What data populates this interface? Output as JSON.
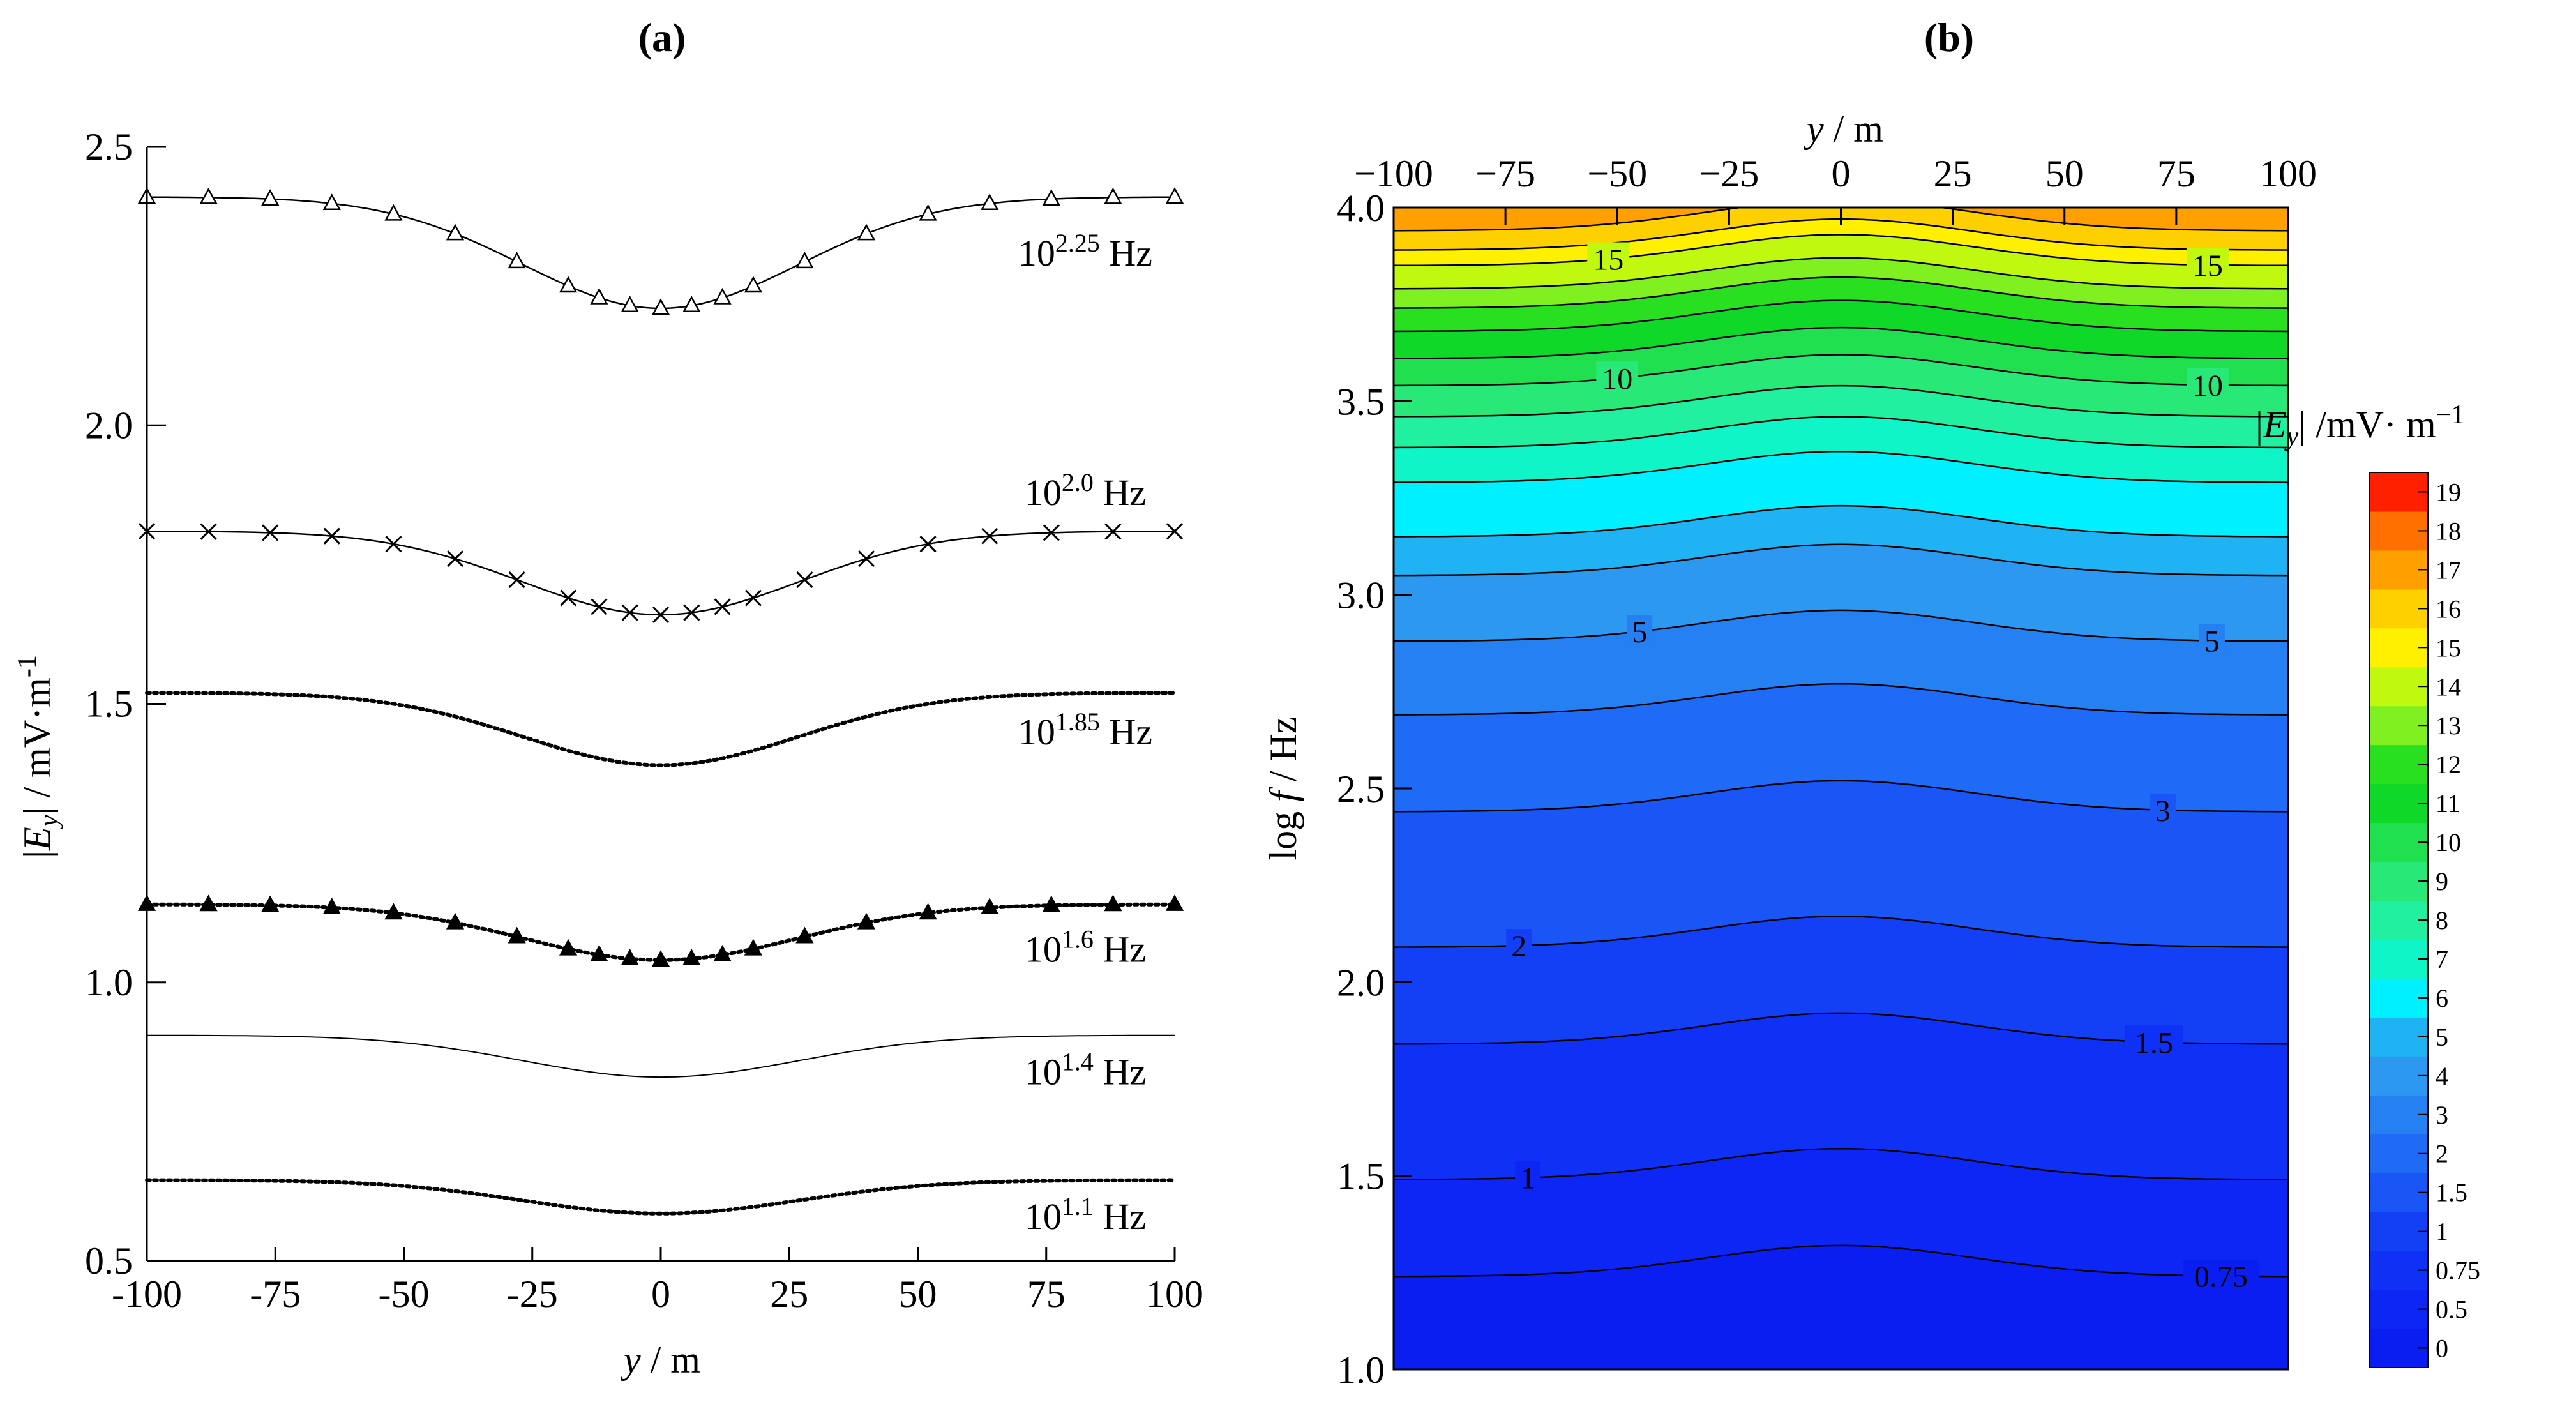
{
  "chart_data": [
    {
      "panel": "a",
      "panel_label": "(a)",
      "type": "line",
      "title": "",
      "xlabel": "y / m",
      "ylabel": "|Ey| / mV·m⁻¹",
      "xlim": [
        -100,
        100
      ],
      "ylim": [
        0.5,
        2.5
      ],
      "x_ticks": [
        -100,
        -75,
        -50,
        -25,
        0,
        25,
        50,
        75,
        100
      ],
      "x_tick_labels": [
        "-100",
        "-75",
        "-50",
        "-25",
        "0",
        "25",
        "50",
        "75",
        "100"
      ],
      "y_ticks": [
        0.5,
        1.0,
        1.5,
        2.0,
        2.5
      ],
      "y_tick_labels": [
        "0.5",
        "1.0",
        "1.5",
        "2.0",
        "2.5"
      ],
      "series": [
        {
          "name": "10^2.25 Hz",
          "exponent": "2.25",
          "unit": "Hz",
          "edge_value": 2.41,
          "center_value": 2.21,
          "line": "solid",
          "marker": "open-triangle"
        },
        {
          "name": "10^2.0 Hz",
          "exponent": "2.0",
          "unit": "Hz",
          "edge_value": 1.81,
          "center_value": 1.66,
          "line": "solid",
          "marker": "x"
        },
        {
          "name": "10^1.85 Hz",
          "exponent": "1.85",
          "unit": "Hz",
          "edge_value": 1.52,
          "center_value": 1.39,
          "line": "dotted",
          "marker": "none"
        },
        {
          "name": "10^1.6 Hz",
          "exponent": "1.6",
          "unit": "Hz",
          "edge_value": 1.14,
          "center_value": 1.04,
          "line": "dotted",
          "marker": "filled-triangle"
        },
        {
          "name": "10^1.4 Hz",
          "exponent": "1.4",
          "unit": "Hz",
          "edge_value": 0.905,
          "center_value": 0.83,
          "line": "solid-thin",
          "marker": "none"
        },
        {
          "name": "10^1.1 Hz",
          "exponent": "1.1",
          "unit": "Hz",
          "edge_value": 0.645,
          "center_value": 0.585,
          "line": "dotted",
          "marker": "none"
        }
      ],
      "marker_x": [
        -100,
        -88,
        -76,
        -64,
        -52,
        -40,
        -28,
        -18,
        -12,
        -6,
        0,
        6,
        12,
        18,
        28,
        40,
        52,
        64,
        76,
        88,
        100
      ]
    },
    {
      "panel": "b",
      "panel_label": "(b)",
      "type": "heatmap",
      "title": "",
      "xlabel": "y / m",
      "ylabel": "log f / Hz",
      "xlim": [
        -100,
        100
      ],
      "ylim": [
        1.0,
        4.0
      ],
      "x_ticks": [
        -100,
        -75,
        -50,
        -25,
        0,
        25,
        50,
        75,
        100
      ],
      "x_tick_labels": [
        "−100",
        "−75",
        "−50",
        "−25",
        "0",
        "25",
        "50",
        "75",
        "100"
      ],
      "y_ticks": [
        1.0,
        1.5,
        2.0,
        2.5,
        3.0,
        3.5,
        4.0
      ],
      "y_tick_labels": [
        "1.0",
        "1.5",
        "2.0",
        "2.5",
        "3.0",
        "3.5",
        "4.0"
      ],
      "colorbar_title": "|Ey| /mV· m⁻¹",
      "colorbar_levels": [
        "0",
        "0.5",
        "0.75",
        "1",
        "1.5",
        "2",
        "3",
        "4",
        "5",
        "6",
        "7",
        "8",
        "9",
        "10",
        "11",
        "12",
        "13",
        "14",
        "15",
        "16",
        "17",
        "18",
        "19"
      ],
      "colorbar_colors": [
        "#0a1ef2",
        "#0d26f4",
        "#0f30f5",
        "#1340f5",
        "#1a55f6",
        "#1f6bf5",
        "#2580f2",
        "#2d98ef",
        "#1fb3f4",
        "#00f0ff",
        "#10f5c8",
        "#20f0a0",
        "#28e878",
        "#20e050",
        "#10d828",
        "#28e020",
        "#80f020",
        "#c0f810",
        "#fff000",
        "#ffd000",
        "#ffa000",
        "#ff7000",
        "#ff2000"
      ],
      "band_boundaries_log_f": [
        1.0,
        1.24,
        1.49,
        1.84,
        2.09,
        2.44,
        2.69,
        2.88,
        3.05,
        3.15,
        3.29,
        3.38,
        3.46,
        3.54,
        3.61,
        3.68,
        3.74,
        3.79,
        3.85,
        3.89,
        3.94,
        4.0
      ],
      "band_colors": [
        "#0a1ef2",
        "#0d26f4",
        "#0f30f5",
        "#1340f5",
        "#1a55f6",
        "#1f6bf5",
        "#2580f2",
        "#2d98ef",
        "#1fb3f4",
        "#00f0ff",
        "#10f5c8",
        "#20f0a0",
        "#28e878",
        "#20e050",
        "#10d828",
        "#28e020",
        "#80f020",
        "#c0f810",
        "#fff000",
        "#ffd000",
        "#ffa000",
        "#ff7000"
      ],
      "contour_bump": 0.08,
      "contour_labels": [
        {
          "text": "0.75",
          "y": 85,
          "log_f": 1.24
        },
        {
          "text": "1",
          "y": -70,
          "log_f": 1.49
        },
        {
          "text": "1.5",
          "y": 70,
          "log_f": 1.84
        },
        {
          "text": "2",
          "y": -72,
          "log_f": 2.09
        },
        {
          "text": "3",
          "y": 72,
          "log_f": 2.44
        },
        {
          "text": "5",
          "y": -45,
          "log_f": 2.88
        },
        {
          "text": "5",
          "y": 83,
          "log_f": 2.88
        },
        {
          "text": "10",
          "y": -50,
          "log_f": 3.54
        },
        {
          "text": "10",
          "y": 82,
          "log_f": 3.54
        },
        {
          "text": "15",
          "y": -52,
          "log_f": 3.85
        },
        {
          "text": "15",
          "y": 82,
          "log_f": 3.85
        }
      ]
    }
  ]
}
